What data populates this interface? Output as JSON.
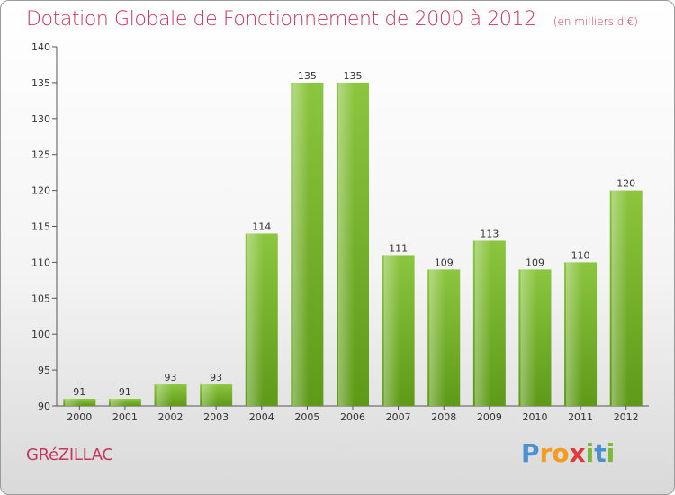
{
  "chart_data": {
    "type": "bar",
    "title": "Dotation Globale de Fonctionnement de 2000 à 2012",
    "subtitle": "(en milliers d'€)",
    "categories": [
      "2000",
      "2001",
      "2002",
      "2003",
      "2004",
      "2005",
      "2006",
      "2007",
      "2008",
      "2009",
      "2010",
      "2011",
      "2012"
    ],
    "values": [
      91,
      91,
      93,
      93,
      114,
      135,
      135,
      111,
      109,
      113,
      109,
      110,
      120
    ],
    "ylim": [
      90,
      140
    ],
    "yticks": [
      90,
      95,
      100,
      105,
      110,
      115,
      120,
      125,
      130,
      135,
      140
    ],
    "grid": false,
    "bar_color": "#8cc63f",
    "bar_color_dark": "#5e9a18",
    "xlabel": "",
    "ylabel": ""
  },
  "commune": "GRéZILLAC",
  "logo": {
    "letters": [
      "P",
      "r",
      "o",
      "x",
      "i",
      "t",
      "i"
    ],
    "colors": [
      "#4a8fd0",
      "#f39c1f",
      "#f39c1f",
      "#e03a3a",
      "#7ab93a",
      "#4a8fd0",
      "#7ab93a"
    ]
  },
  "colors": {
    "title": "#c5365f",
    "axis": "#555555"
  }
}
